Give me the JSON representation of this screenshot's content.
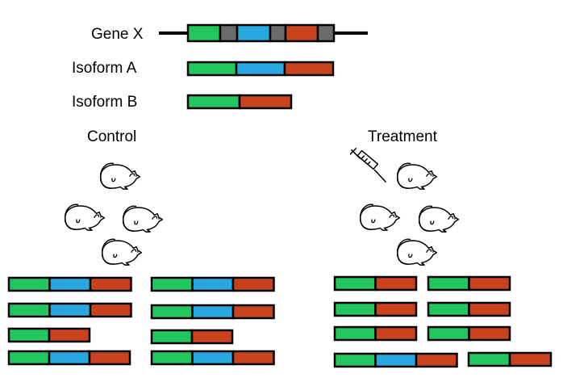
{
  "colors": {
    "exon1": "#22c55e",
    "exon2": "#29a8e0",
    "exon3": "#c8421e",
    "intron": "#6b6b6b",
    "line": "#000000"
  },
  "icons": {
    "mouse": "mouse-icon",
    "syringe": "syringe-icon"
  },
  "labels": {
    "gene": "Gene X",
    "isoform_a": "Isoform A",
    "isoform_b": "Isoform B",
    "control": "Control",
    "treatment": "Treatment"
  },
  "gene_structure": [
    "exon1",
    "intron",
    "exon2",
    "intron",
    "exon3",
    "intron"
  ],
  "isoforms": {
    "A": [
      "exon1",
      "exon2",
      "exon3"
    ],
    "B": [
      "exon1",
      "exon3"
    ]
  },
  "groups": {
    "control": {
      "mice": 4,
      "transcripts": [
        "A",
        "A",
        "A",
        "A",
        "B",
        "B",
        "A",
        "A"
      ]
    },
    "treatment": {
      "mice": 4,
      "transcripts": [
        "B",
        "B",
        "B",
        "B",
        "B",
        "B",
        "A",
        "B"
      ]
    }
  }
}
